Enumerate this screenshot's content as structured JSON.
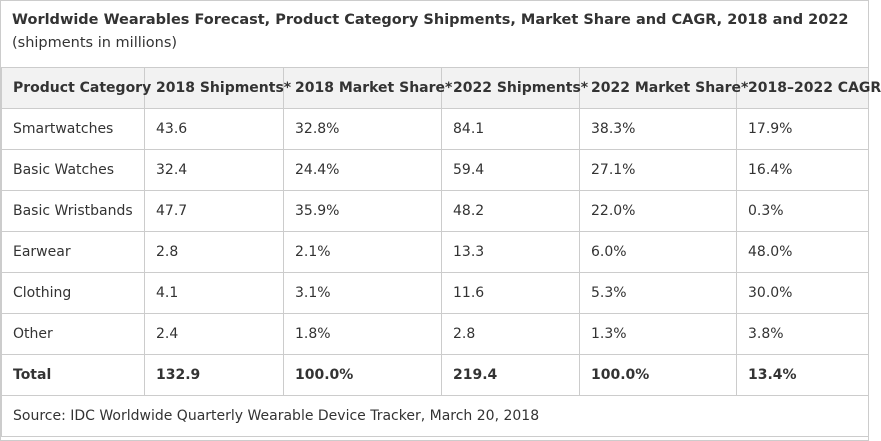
{
  "caption": {
    "title_bold": "Worldwide Wearables Forecast, Product Category Shipments, Market Share and CAGR, 2018 and 2022",
    "title_rest": " (shipments in millions)"
  },
  "table": {
    "headers": [
      "Product Category",
      "2018 Shipments*",
      "2018 Market Share*",
      "2022 Shipments*",
      "2022 Market Share*",
      "2018–2022 CAGR"
    ],
    "rows": [
      [
        "Smartwatches",
        "43.6",
        "32.8%",
        "84.1",
        "38.3%",
        "17.9%"
      ],
      [
        "Basic Watches",
        "32.4",
        "24.4%",
        "59.4",
        "27.1%",
        "16.4%"
      ],
      [
        "Basic Wristbands",
        "47.7",
        "35.9%",
        "48.2",
        "22.0%",
        "0.3%"
      ],
      [
        "Earwear",
        "2.8",
        "2.1%",
        "13.3",
        "6.0%",
        "48.0%"
      ],
      [
        "Clothing",
        "4.1",
        "3.1%",
        "11.6",
        "5.3%",
        "30.0%"
      ],
      [
        "Other",
        "2.4",
        "1.8%",
        "2.8",
        "1.3%",
        "3.8%"
      ]
    ],
    "total": [
      "Total",
      "132.9",
      "100.0%",
      "219.4",
      "100.0%",
      "13.4%"
    ],
    "source": "Source: IDC Worldwide Quarterly Wearable Device Tracker, March 20, 2018"
  },
  "colors": {
    "header_background": "#f2f2f2",
    "border": "#cccccc",
    "text": "#333333"
  }
}
